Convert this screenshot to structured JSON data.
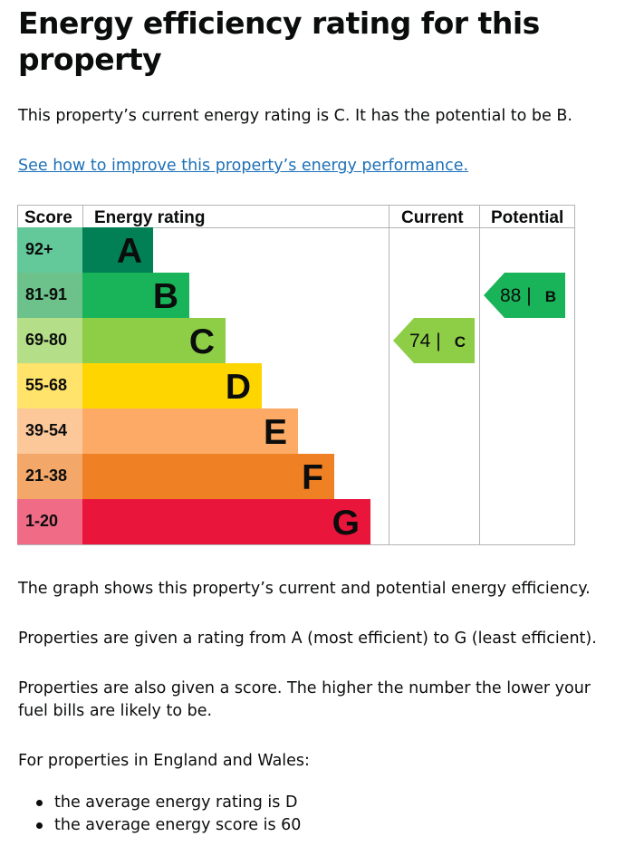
{
  "heading": "Energy efficiency rating for this property",
  "intro": "This property’s current energy rating is C. It has the potential to be B.",
  "improve_link": "See how to improve this property’s energy performance.",
  "chart_data": {
    "type": "bar",
    "columns": [
      "Score",
      "Energy rating",
      "Current",
      "Potential"
    ],
    "bands": [
      {
        "score": "92+",
        "letter": "A",
        "color": "#008054",
        "score_bg": "#63c99b",
        "length": 1
      },
      {
        "score": "81-91",
        "letter": "B",
        "color": "#19b459",
        "score_bg": "#6cc28a",
        "length": 2
      },
      {
        "score": "69-80",
        "letter": "C",
        "color": "#8dce46",
        "score_bg": "#b4df88",
        "length": 3
      },
      {
        "score": "55-68",
        "letter": "D",
        "color": "#ffd500",
        "score_bg": "#ffe36a",
        "length": 4
      },
      {
        "score": "39-54",
        "letter": "E",
        "color": "#fcaa65",
        "score_bg": "#fcc89a",
        "length": 5
      },
      {
        "score": "21-38",
        "letter": "F",
        "color": "#ef8023",
        "score_bg": "#f3a86a",
        "length": 6
      },
      {
        "score": "1-20",
        "letter": "G",
        "color": "#e9153b",
        "score_bg": "#ef6b86",
        "length": 7
      }
    ],
    "current": {
      "value": 74,
      "value_label": "74 |",
      "letter": "C",
      "color": "#8dce46"
    },
    "potential": {
      "value": 88,
      "value_label": "88 |",
      "letter": "B",
      "color": "#19b459"
    }
  },
  "explain_1": "The graph shows this property’s current and potential energy efficiency.",
  "explain_2": "Properties are given a rating from A (most efficient) to G (least efficient).",
  "explain_3": "Properties are also given a score. The higher the number the lower your fuel bills are likely to be.",
  "explain_4": "For properties in England and Wales:",
  "bullets": [
    "the average energy rating is D",
    "the average energy score is 60"
  ]
}
